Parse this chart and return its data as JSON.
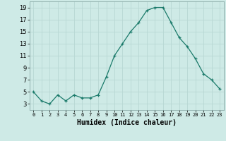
{
  "x": [
    0,
    1,
    2,
    3,
    4,
    5,
    6,
    7,
    8,
    9,
    10,
    11,
    12,
    13,
    14,
    15,
    16,
    17,
    18,
    19,
    20,
    21,
    22,
    23
  ],
  "y": [
    5,
    3.5,
    3,
    4.5,
    3.5,
    4.5,
    4,
    4,
    4.5,
    7.5,
    11,
    13,
    15,
    16.5,
    18.5,
    19,
    19,
    16.5,
    14,
    12.5,
    10.5,
    8,
    7,
    5.5
  ],
  "bg_color": "#ceeae6",
  "grid_color": "#b8d8d4",
  "line_color": "#1a7a6a",
  "marker_color": "#1a7a6a",
  "xlabel": "Humidex (Indice chaleur)",
  "ylim": [
    2,
    20
  ],
  "xlim": [
    -0.5,
    23.5
  ],
  "yticks": [
    3,
    5,
    7,
    9,
    11,
    13,
    15,
    17,
    19
  ],
  "xticks": [
    0,
    1,
    2,
    3,
    4,
    5,
    6,
    7,
    8,
    9,
    10,
    11,
    12,
    13,
    14,
    15,
    16,
    17,
    18,
    19,
    20,
    21,
    22,
    23
  ]
}
